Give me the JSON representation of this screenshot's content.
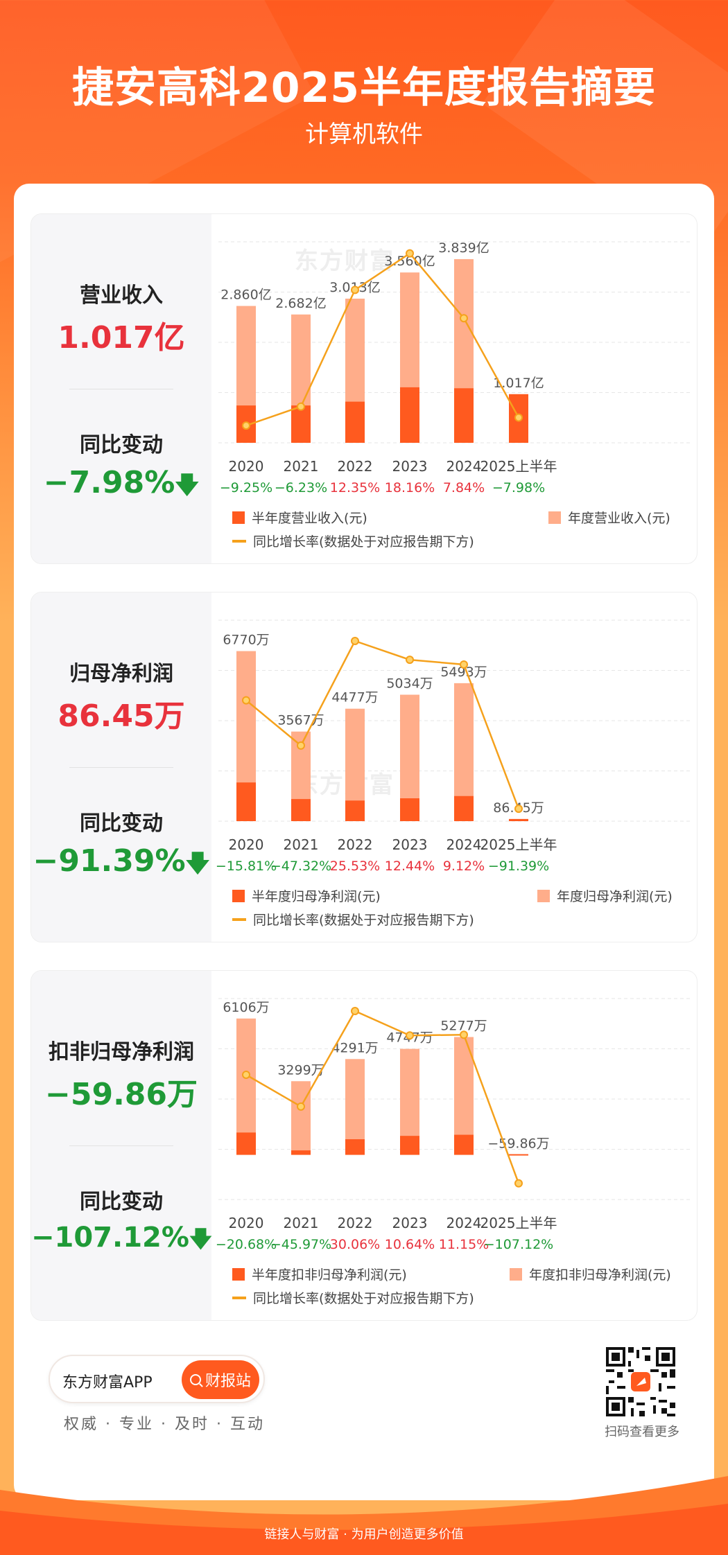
{
  "header": {
    "title": "捷安高科2025半年度报告摘要",
    "subtitle": "计算机软件"
  },
  "colors": {
    "half_bar": "#ff5a1f",
    "annual_bar": "#ffad8a",
    "growth_line": "#f5a11c",
    "positive": "#e8323c",
    "negative": "#1f9a37"
  },
  "watermark": "东方财富",
  "panels": [
    {
      "metric_label": "营业收入",
      "metric_value": "1.017亿",
      "change_label": "同比变动",
      "change_value": "−7.98%",
      "legend": {
        "half": "半年度营业收入(元)",
        "annual": "年度营业收入(元)",
        "line": "同比增长率(数据处于对应报告期下方)"
      }
    },
    {
      "metric_label": "归母净利润",
      "metric_value": "86.45万",
      "change_label": "同比变动",
      "change_value": "−91.39%",
      "legend": {
        "half": "半年度归母净利润(元)",
        "annual": "年度归母净利润(元)",
        "line": "同比增长率(数据处于对应报告期下方)"
      }
    },
    {
      "metric_label": "扣非归母净利润",
      "metric_value": "−59.86万",
      "change_label": "同比变动",
      "change_value": "−107.12%",
      "legend": {
        "half": "半年度扣非归母净利润(元)",
        "annual": "年度扣非归母净利润(元)",
        "line": "同比增长率(数据处于对应报告期下方)"
      }
    }
  ],
  "chart_data": [
    {
      "type": "bar",
      "categories": [
        "2020",
        "2021",
        "2022",
        "2023",
        "2024",
        "2025上半年"
      ],
      "series": [
        {
          "name": "半年度营业收入(元)",
          "values": [
            0.78,
            0.78,
            0.86,
            1.16,
            1.14,
            1.017
          ]
        },
        {
          "name": "年度营业收入(元)",
          "values": [
            2.86,
            2.682,
            3.013,
            3.56,
            3.839,
            null
          ]
        },
        {
          "name": "同比增长率(数据处于对应报告期下方)",
          "values": [
            -9.25,
            -6.23,
            12.35,
            18.16,
            7.84,
            -7.98
          ]
        }
      ],
      "bar_labels": [
        "2.860亿",
        "2.682亿",
        "3.013亿",
        "3.560亿",
        "3.839亿",
        "1.017亿"
      ],
      "growth_labels": [
        "−9.25%",
        "−6.23%",
        "12.35%",
        "18.16%",
        "7.84%",
        "−7.98%"
      ],
      "bar_range": [
        0,
        4.2
      ],
      "growth_range": [
        -12,
        20
      ]
    },
    {
      "type": "bar",
      "categories": [
        "2020",
        "2021",
        "2022",
        "2023",
        "2024",
        "2025上半年"
      ],
      "series": [
        {
          "name": "半年度归母净利润(元)",
          "values": [
            1540,
            880,
            820,
            910,
            1000,
            86.45
          ]
        },
        {
          "name": "年度归母净利润(元)",
          "values": [
            6770,
            3567,
            4477,
            5034,
            5493,
            null
          ]
        },
        {
          "name": "同比增长率(数据处于对应报告期下方)",
          "values": [
            -15.81,
            -47.32,
            25.53,
            12.44,
            9.12,
            -91.39
          ]
        }
      ],
      "bar_labels": [
        "6770万",
        "3567万",
        "4477万",
        "5034万",
        "5493万",
        "86.45万"
      ],
      "growth_labels": [
        "−15.81%",
        "−47.32%",
        "25.53%",
        "12.44%",
        "9.12%",
        "−91.39%"
      ],
      "bar_range": [
        0,
        8000
      ],
      "growth_range": [
        -100,
        40
      ]
    },
    {
      "type": "bar",
      "categories": [
        "2020",
        "2021",
        "2022",
        "2023",
        "2024",
        "2025上半年"
      ],
      "series": [
        {
          "name": "半年度扣非归母净利润(元)",
          "values": [
            1000,
            200,
            700,
            850,
            900,
            -59.86
          ]
        },
        {
          "name": "年度扣非归母净利润(元)",
          "values": [
            6106,
            3299,
            4291,
            4747,
            5277,
            null
          ]
        },
        {
          "name": "同比增长率(数据处于对应报告期下方)",
          "values": [
            -20.68,
            -45.97,
            30.06,
            10.64,
            11.15,
            -107.12
          ]
        }
      ],
      "bar_labels": [
        "6106万",
        "3299万",
        "4291万",
        "4747万",
        "5277万",
        "−59.86万"
      ],
      "growth_labels": [
        "−20.68%",
        "−45.97%",
        "30.06%",
        "10.64%",
        "11.15%",
        "−107.12%"
      ],
      "bar_range": [
        -2000,
        7000
      ],
      "growth_range": [
        -120,
        40
      ]
    }
  ],
  "footer": {
    "app_name": "东方财富APP",
    "button_label": "财报站",
    "slogan": "权威 · 专业 · 及时 · 互动",
    "qr_label": "扫码查看更多",
    "bottom_text": "链接人与财富 · 为用户创造更多价值"
  }
}
